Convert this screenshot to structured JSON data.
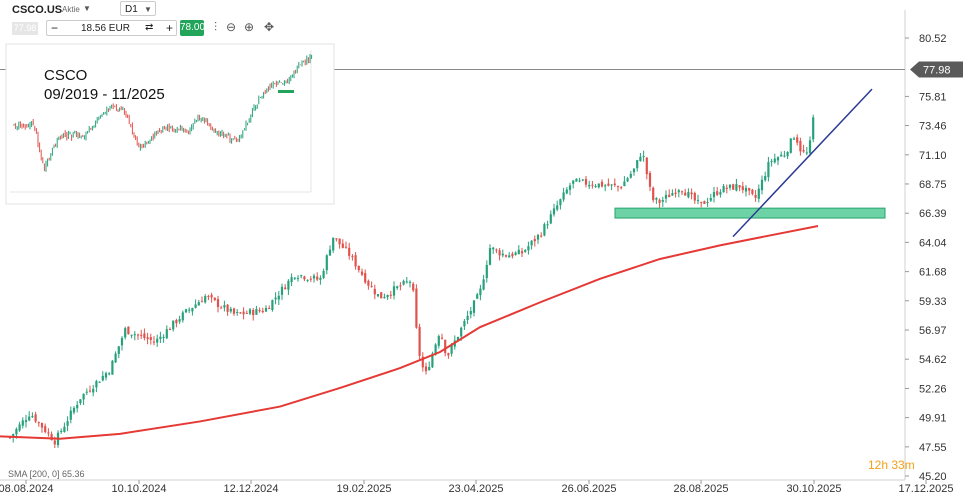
{
  "header": {
    "symbol": "CSCO.US",
    "instrument_type": "Aktie",
    "timeframe": "D1",
    "bid": "77.98",
    "quantity": "18.56 EUR",
    "ask": "78.00"
  },
  "icons": {
    "dropdown": "chevron-down-icon",
    "chart_type": "candlestick-icon",
    "zoom_out": "zoom-out-icon",
    "zoom_in": "zoom-in-icon",
    "move": "move-icon",
    "swap": "swap-icon"
  },
  "inset": {
    "title_line1": "CSCO",
    "title_line2": "09/2019 - 11/2025"
  },
  "indicator_label": "SMA [200, 0] 65.36",
  "timer": "12h 33m",
  "chart_data": {
    "type": "candlestick",
    "y_ticks": [
      "80.52",
      "77.98",
      "75.81",
      "73.46",
      "71.10",
      "68.75",
      "66.39",
      "64.04",
      "61.68",
      "59.33",
      "56.97",
      "54.62",
      "52.26",
      "49.91",
      "47.55",
      "45.20"
    ],
    "x_ticks": [
      "08.08.2024",
      "10.10.2024",
      "12.12.2024",
      "19.02.2025",
      "23.04.2025",
      "26.06.2025",
      "28.08.2025",
      "30.10.2025",
      "17.12.2025"
    ],
    "ylim": [
      45.2,
      80.52
    ],
    "last_price": 77.98,
    "support_zone": [
      66.0,
      66.8
    ],
    "trendline": {
      "from": [
        "2025-09-15",
        64.5
      ],
      "to": [
        "2025-11-20",
        76.4
      ]
    },
    "sma200": {
      "name": "SMA [200, 0]",
      "value": 65.36
    },
    "colors": {
      "up": "#26a17b",
      "down": "#e0524c",
      "sma": "#e53935",
      "trendline": "#2b3a93",
      "zone": "#3cc48a"
    }
  }
}
